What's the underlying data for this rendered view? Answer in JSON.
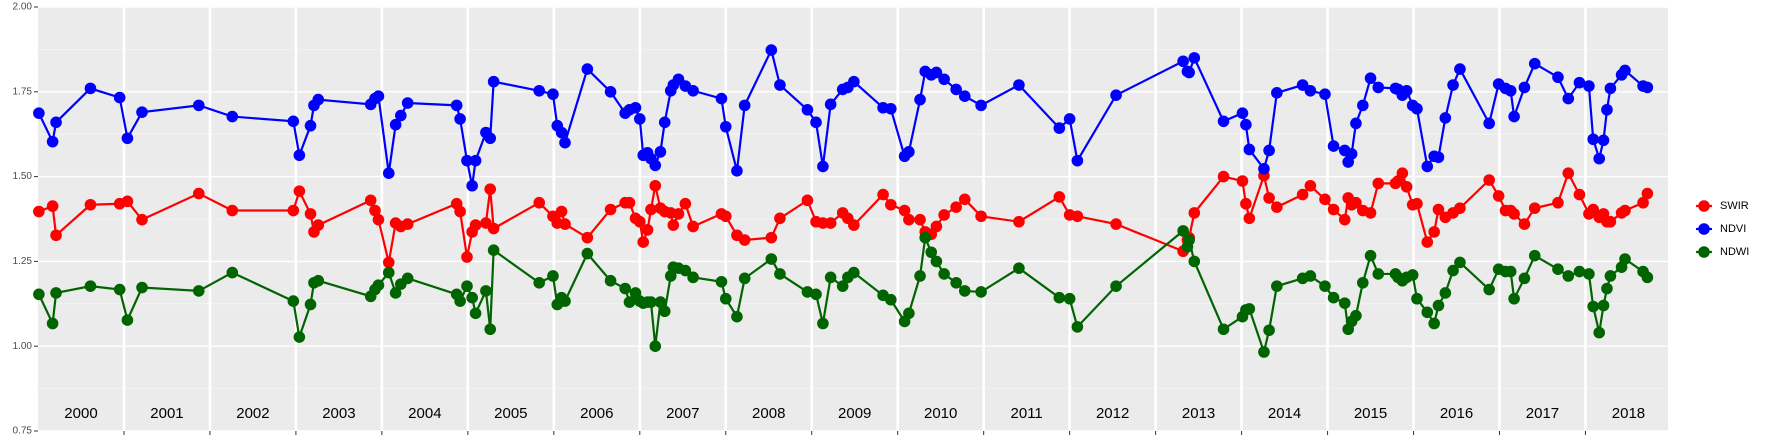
{
  "chart_data": {
    "type": "line",
    "x": [
      2000.01,
      2000.17,
      2000.21,
      2000.61,
      2000.95,
      2001.04,
      2001.21,
      2001.87,
      2002.26,
      2002.97,
      2003.04,
      2003.17,
      2003.21,
      2003.26,
      2003.87,
      2003.92,
      2003.96,
      2004.08,
      2004.16,
      2004.22,
      2004.3,
      2004.87,
      2004.91,
      2004.99,
      2005.05,
      2005.09,
      2005.21,
      2005.26,
      2005.3,
      2005.83,
      2005.99,
      2006.04,
      2006.09,
      2006.13,
      2006.39,
      2006.66,
      2006.83,
      2006.88,
      2006.95,
      2007.0,
      2007.04,
      2007.09,
      2007.13,
      2007.18,
      2007.24,
      2007.29,
      2007.36,
      2007.39,
      2007.45,
      2007.53,
      2007.62,
      2007.95,
      2008.0,
      2008.13,
      2008.22,
      2008.53,
      2008.63,
      2008.95,
      2009.05,
      2009.13,
      2009.22,
      2009.36,
      2009.42,
      2009.49,
      2009.83,
      2009.92,
      2010.08,
      2010.13,
      2010.26,
      2010.32,
      2010.39,
      2010.45,
      2010.54,
      2010.68,
      2010.78,
      2010.97,
      2011.41,
      2011.88,
      2012.0,
      2012.09,
      2012.54,
      2013.32,
      2013.37,
      2013.39,
      2013.45,
      2013.79,
      2014.01,
      2014.05,
      2014.09,
      2014.26,
      2014.32,
      2014.41,
      2014.71,
      2014.8,
      2014.97,
      2015.07,
      2015.2,
      2015.24,
      2015.28,
      2015.33,
      2015.41,
      2015.5,
      2015.59,
      2015.79,
      2015.82,
      2015.87,
      2015.92,
      2015.99,
      2016.04,
      2016.16,
      2016.24,
      2016.29,
      2016.37,
      2016.46,
      2016.54,
      2016.88,
      2016.99,
      2017.07,
      2017.13,
      2017.17,
      2017.29,
      2017.41,
      2017.68,
      2017.8,
      2017.93,
      2018.04,
      2018.09,
      2018.16,
      2018.21,
      2018.25,
      2018.29,
      2018.42,
      2018.46,
      2018.67,
      2018.72
    ],
    "series": [
      {
        "name": "SWIR",
        "color": "#ff0000",
        "values": [
          1.397,
          1.413,
          1.327,
          1.417,
          1.42,
          1.427,
          1.373,
          1.45,
          1.4,
          1.4,
          1.457,
          1.39,
          1.337,
          1.357,
          1.43,
          1.4,
          1.373,
          1.247,
          1.363,
          1.353,
          1.36,
          1.42,
          1.397,
          1.263,
          1.337,
          1.357,
          1.363,
          1.463,
          1.347,
          1.423,
          1.383,
          1.363,
          1.397,
          1.36,
          1.32,
          1.403,
          1.423,
          1.423,
          1.377,
          1.367,
          1.307,
          1.343,
          1.403,
          1.473,
          1.407,
          1.397,
          1.393,
          1.357,
          1.39,
          1.42,
          1.353,
          1.39,
          1.383,
          1.327,
          1.313,
          1.32,
          1.377,
          1.43,
          1.367,
          1.363,
          1.363,
          1.393,
          1.377,
          1.357,
          1.447,
          1.417,
          1.4,
          1.373,
          1.373,
          1.337,
          1.33,
          1.353,
          1.387,
          1.41,
          1.433,
          1.383,
          1.367,
          1.44,
          1.387,
          1.383,
          1.36,
          1.28,
          1.313,
          1.32,
          1.393,
          1.5,
          1.487,
          1.42,
          1.377,
          1.503,
          1.437,
          1.41,
          1.447,
          1.473,
          1.433,
          1.403,
          1.373,
          1.437,
          1.417,
          1.423,
          1.4,
          1.393,
          1.48,
          1.48,
          1.487,
          1.51,
          1.47,
          1.417,
          1.42,
          1.307,
          1.337,
          1.403,
          1.38,
          1.393,
          1.407,
          1.49,
          1.443,
          1.4,
          1.4,
          1.39,
          1.36,
          1.407,
          1.423,
          1.51,
          1.447,
          1.39,
          1.403,
          1.38,
          1.39,
          1.367,
          1.367,
          1.393,
          1.4,
          1.423,
          1.45
        ]
      },
      {
        "name": "NDVI",
        "color": "#0000ff",
        "values": [
          1.687,
          1.603,
          1.66,
          1.76,
          1.733,
          1.613,
          1.69,
          1.71,
          1.677,
          1.663,
          1.563,
          1.65,
          1.71,
          1.727,
          1.713,
          1.73,
          1.737,
          1.51,
          1.653,
          1.68,
          1.717,
          1.71,
          1.67,
          1.547,
          1.473,
          1.547,
          1.63,
          1.613,
          1.78,
          1.753,
          1.743,
          1.65,
          1.63,
          1.6,
          1.817,
          1.75,
          1.687,
          1.697,
          1.703,
          1.67,
          1.563,
          1.57,
          1.553,
          1.533,
          1.573,
          1.66,
          1.753,
          1.77,
          1.787,
          1.767,
          1.753,
          1.73,
          1.647,
          1.517,
          1.71,
          1.873,
          1.77,
          1.697,
          1.66,
          1.53,
          1.713,
          1.757,
          1.763,
          1.78,
          1.703,
          1.7,
          1.56,
          1.573,
          1.727,
          1.81,
          1.8,
          1.807,
          1.787,
          1.757,
          1.737,
          1.71,
          1.77,
          1.643,
          1.67,
          1.547,
          1.74,
          1.84,
          1.81,
          1.807,
          1.85,
          1.663,
          1.687,
          1.653,
          1.58,
          1.523,
          1.577,
          1.747,
          1.77,
          1.753,
          1.743,
          1.59,
          1.577,
          1.543,
          1.567,
          1.657,
          1.71,
          1.79,
          1.763,
          1.76,
          1.757,
          1.74,
          1.753,
          1.71,
          1.7,
          1.53,
          1.56,
          1.557,
          1.673,
          1.77,
          1.817,
          1.657,
          1.773,
          1.76,
          1.753,
          1.677,
          1.763,
          1.833,
          1.793,
          1.73,
          1.777,
          1.767,
          1.61,
          1.553,
          1.607,
          1.697,
          1.76,
          1.8,
          1.813,
          1.767,
          1.763
        ]
      },
      {
        "name": "NDWI",
        "color": "#006400",
        "values": [
          1.153,
          1.067,
          1.157,
          1.177,
          1.167,
          1.077,
          1.173,
          1.163,
          1.217,
          1.133,
          1.027,
          1.123,
          1.187,
          1.193,
          1.147,
          1.167,
          1.18,
          1.217,
          1.157,
          1.183,
          1.2,
          1.153,
          1.133,
          1.177,
          1.143,
          1.097,
          1.163,
          1.05,
          1.283,
          1.187,
          1.207,
          1.123,
          1.143,
          1.133,
          1.273,
          1.193,
          1.17,
          1.13,
          1.157,
          1.133,
          1.127,
          1.13,
          1.13,
          1.0,
          1.13,
          1.103,
          1.207,
          1.233,
          1.23,
          1.223,
          1.203,
          1.19,
          1.14,
          1.087,
          1.2,
          1.257,
          1.213,
          1.16,
          1.153,
          1.067,
          1.203,
          1.177,
          1.203,
          1.217,
          1.15,
          1.137,
          1.073,
          1.097,
          1.207,
          1.32,
          1.277,
          1.25,
          1.213,
          1.187,
          1.163,
          1.16,
          1.23,
          1.143,
          1.14,
          1.057,
          1.177,
          1.34,
          1.293,
          1.313,
          1.25,
          1.05,
          1.087,
          1.107,
          1.11,
          0.983,
          1.047,
          1.177,
          1.2,
          1.207,
          1.177,
          1.143,
          1.127,
          1.05,
          1.073,
          1.09,
          1.187,
          1.267,
          1.213,
          1.213,
          1.203,
          1.193,
          1.203,
          1.21,
          1.14,
          1.1,
          1.067,
          1.12,
          1.157,
          1.223,
          1.247,
          1.167,
          1.227,
          1.22,
          1.22,
          1.14,
          1.2,
          1.267,
          1.227,
          1.207,
          1.22,
          1.213,
          1.117,
          1.04,
          1.12,
          1.17,
          1.207,
          1.233,
          1.257,
          1.22,
          1.203
        ]
      }
    ],
    "year_labels": [
      "2000",
      "2001",
      "2002",
      "2003",
      "2004",
      "2005",
      "2006",
      "2007",
      "2008",
      "2009",
      "2010",
      "2011",
      "2012",
      "2013",
      "2014",
      "2015",
      "2016",
      "2017",
      "2018"
    ],
    "xlim": [
      2000,
      2018.96
    ],
    "xticks": [
      2001,
      2002,
      2003,
      2004,
      2005,
      2006,
      2007,
      2008,
      2009,
      2010,
      2011,
      2012,
      2013,
      2014,
      2015,
      2016,
      2017,
      2018
    ],
    "ylim": [
      0.75,
      2.0
    ],
    "yticks": [
      {
        "value": 0.75,
        "label": "0.75"
      },
      {
        "value": 1,
        "label": "1.00"
      },
      {
        "value": 1.25,
        "label": "1.25"
      },
      {
        "value": 1.5,
        "label": "1.50"
      },
      {
        "value": 1.75,
        "label": "1.75"
      },
      {
        "value": 2,
        "label": "2.00"
      }
    ],
    "grid": true,
    "legend": "right"
  }
}
